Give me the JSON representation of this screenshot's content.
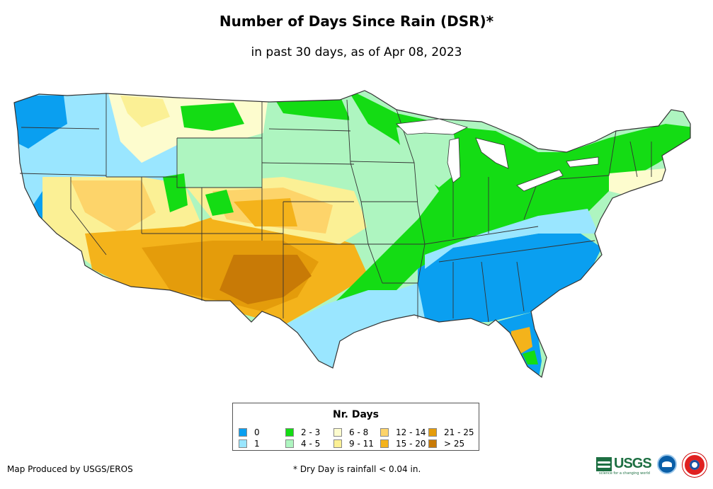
{
  "title": "Number of Days Since Rain (DSR)*",
  "subtitle": "in past 30 days, as of Apr 08, 2023",
  "legend": {
    "title": "Nr. Days",
    "items": [
      {
        "label": "0",
        "color": "#0a9ff0"
      },
      {
        "label": "1",
        "color": "#9ae6ff"
      },
      {
        "label": "2 - 3",
        "color": "#14dc14"
      },
      {
        "label": "4 - 5",
        "color": "#aef5c0"
      },
      {
        "label": "6 - 8",
        "color": "#fdfcce"
      },
      {
        "label": "9 - 11",
        "color": "#fbf095"
      },
      {
        "label": "12 - 14",
        "color": "#fdd46a"
      },
      {
        "label": "15 - 20",
        "color": "#f4b31b"
      },
      {
        "label": "21 - 25",
        "color": "#e49c0b"
      },
      {
        "label": "> 25",
        "color": "#c87a06"
      }
    ]
  },
  "credit": "Map Produced by USGS/EROS",
  "footnote": "* Dry Day is rainfall < 0.04 in.",
  "logos": {
    "usgs": "USGS",
    "usgs_tagline": "science for a changing world"
  },
  "colors": {
    "state_border": "#333333",
    "background": "#ffffff"
  }
}
